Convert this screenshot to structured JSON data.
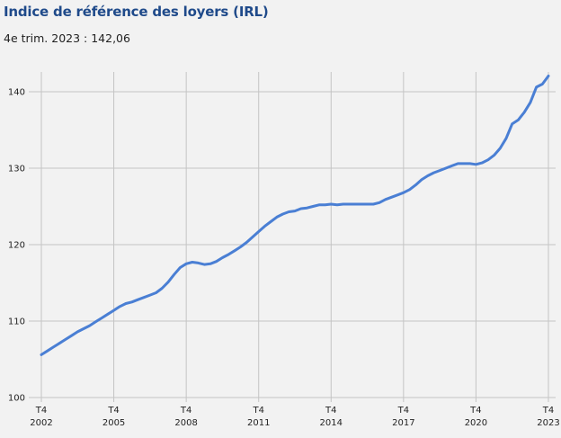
{
  "title": "Indice de référence des loyers (IRL)",
  "subtitle": "4e trim. 2023 : 142,06",
  "colors": {
    "line": "#4a7fd4",
    "title": "#1f4a8a",
    "grid": "#c4c4c4",
    "background": "#f2f2f2"
  },
  "chart_data": {
    "type": "line",
    "title": "Indice de référence des loyers (IRL)",
    "xlabel": "",
    "ylabel": "",
    "ylim": [
      100,
      142.6
    ],
    "grid": true,
    "y_ticks": [
      100,
      110,
      120,
      130,
      140
    ],
    "x_ticks": [
      {
        "quarter": "T4",
        "year": "2002"
      },
      {
        "quarter": "T4",
        "year": "2005"
      },
      {
        "quarter": "T4",
        "year": "2008"
      },
      {
        "quarter": "T4",
        "year": "2011"
      },
      {
        "quarter": "T4",
        "year": "2014"
      },
      {
        "quarter": "T4",
        "year": "2017"
      },
      {
        "quarter": "T4",
        "year": "2020"
      },
      {
        "quarter": "T4",
        "year": "2023"
      }
    ],
    "x_start": "T4 2002",
    "x_end": "T4 2023",
    "series": [
      {
        "values": [
          105.6,
          106.1,
          106.6,
          107.1,
          107.6,
          108.1,
          108.6,
          109.0,
          109.4,
          109.9,
          110.4,
          110.9,
          111.4,
          111.9,
          112.3,
          112.5,
          112.8,
          113.1,
          113.4,
          113.7,
          114.3,
          115.1,
          116.1,
          117.0,
          117.5,
          117.7,
          117.6,
          117.4,
          117.5,
          117.8,
          118.3,
          118.7,
          119.2,
          119.7,
          120.3,
          121.0,
          121.7,
          122.4,
          123.0,
          123.6,
          124.0,
          124.3,
          124.4,
          124.7,
          124.8,
          125.0,
          125.2,
          125.2,
          125.3,
          125.2,
          125.3,
          125.3,
          125.3,
          125.3,
          125.3,
          125.3,
          125.5,
          125.9,
          126.2,
          126.5,
          126.8,
          127.2,
          127.8,
          128.5,
          129.0,
          129.4,
          129.7,
          130.0,
          130.3,
          130.6,
          130.6,
          130.6,
          130.5,
          130.7,
          131.1,
          131.7,
          132.6,
          133.9,
          135.8,
          136.3,
          137.3,
          138.6,
          140.6,
          141.0,
          142.06
        ]
      }
    ]
  }
}
